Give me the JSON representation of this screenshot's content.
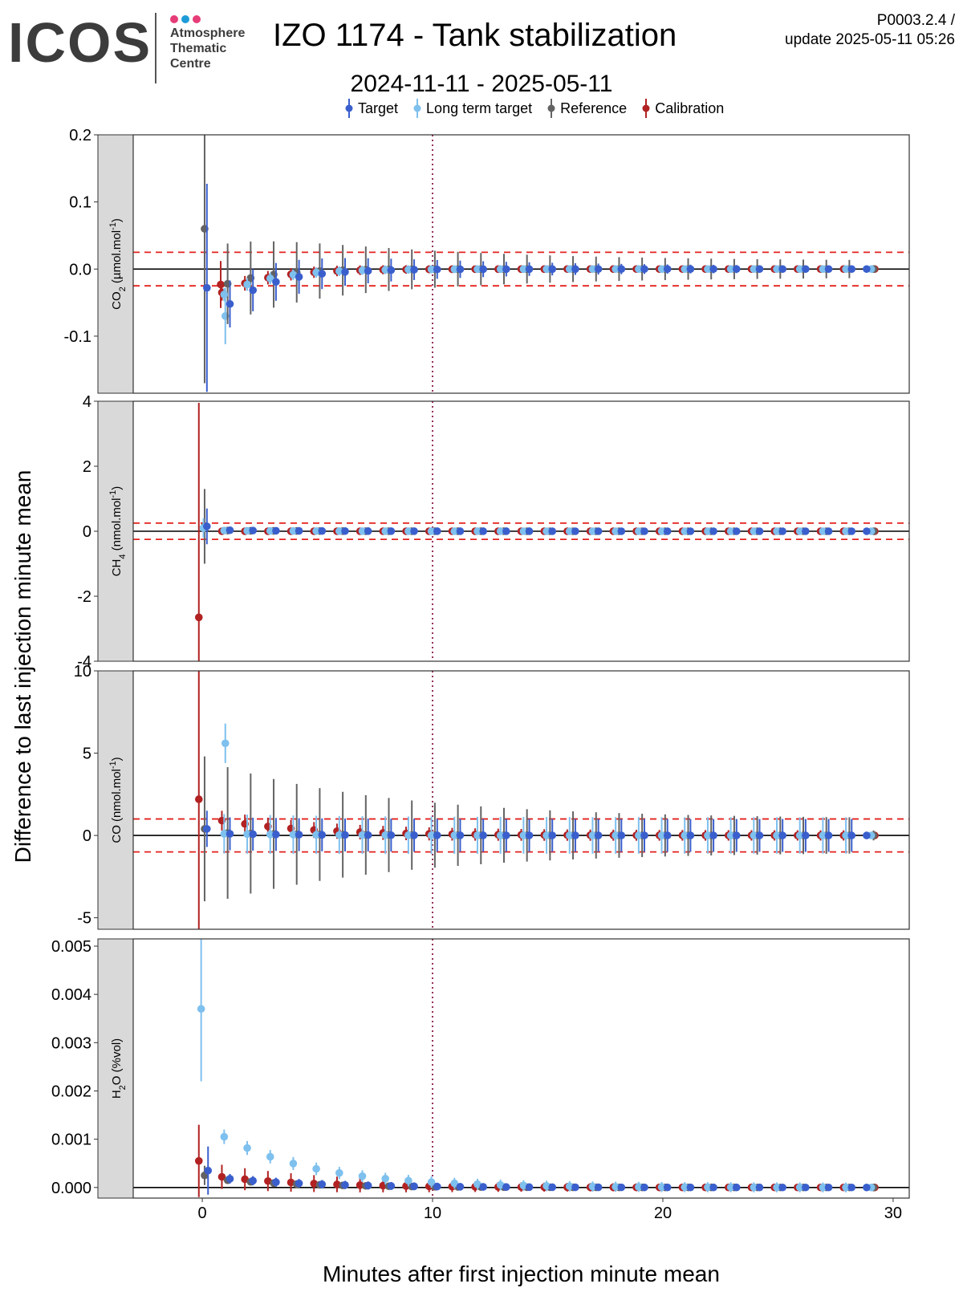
{
  "header": {
    "logo_text": "ICOS",
    "logo_subtitle": [
      "Atmosphere",
      "Thematic",
      "Centre"
    ],
    "logo_dot_colors": [
      "#e63c78",
      "#1e9bd7",
      "#e63c78"
    ],
    "title": "IZO 1174 - Tank stabilization",
    "version_line1": "P0003.2.4 /",
    "version_line2": "update  2025-05-11 05:26",
    "subtitle": "2024-11-11 - 2025-05-11"
  },
  "chart_data": {
    "type": "scatter",
    "subtype": "point-with-errorbars, faceted",
    "xlabel": "Minutes after first injection minute mean",
    "ylabel": "Difference to last injection minute mean",
    "xlim": [
      -3,
      30.7
    ],
    "xticks": [
      0,
      10,
      20,
      30
    ],
    "vline_x": 10,
    "legend": {
      "placement": "top",
      "entries": [
        {
          "name": "Target",
          "color": "#3a5fcd"
        },
        {
          "name": "Long term target",
          "color": "#7ec0ee"
        },
        {
          "name": "Reference",
          "color": "#636363"
        },
        {
          "name": "Calibration",
          "color": "#b22222"
        }
      ]
    },
    "panels": [
      {
        "label_main": "CO",
        "label_sub": "2",
        "label_rest": " (µmol.mol",
        "label_sup": "-1",
        "label_end": ")",
        "ylim": [
          -0.185,
          0.2
        ],
        "yticks": [
          -0.1,
          0.0,
          0.1,
          0.2
        ],
        "ytick_labels": [
          "-0.1",
          "0.0",
          "0.1",
          "0.2"
        ],
        "threshold": 0.025,
        "first": {
          "Target": {
            "x": 0.2,
            "y": -0.028,
            "err": 0.155
          },
          "Long term target": {
            "x": 1.0,
            "y": -0.07,
            "err": 0.042
          },
          "Reference": {
            "x": 0.1,
            "y": 0.06,
            "err": 0.23
          },
          "Calibration": {
            "x": 0.8,
            "y": -0.023,
            "err": 0.035
          }
        },
        "series_start": [
          -0.052,
          -0.038,
          -0.022,
          -0.035
        ],
        "decay": 2.0,
        "err_start": [
          0.035,
          0.01,
          0.06,
          0.012
        ],
        "err_end": [
          0.004,
          0.004,
          0.012,
          0.003
        ],
        "tail_err": [
          0.004,
          0.004,
          0.005,
          0.003
        ]
      },
      {
        "label_main": "CH",
        "label_sub": "4",
        "label_rest": " (nmol.mol",
        "label_sup": "-1",
        "label_end": ")",
        "ylim": [
          -4,
          4
        ],
        "yticks": [
          -4,
          -2,
          0,
          2,
          4
        ],
        "ytick_labels": [
          "-4",
          "-2",
          "0",
          "2",
          "4"
        ],
        "threshold": 0.25,
        "first": {
          "Target": {
            "x": 0.2,
            "y": 0.15,
            "err": 0.55
          },
          "Long term target": {
            "x": 0.05,
            "y": 0.1,
            "err": 0.3
          },
          "Reference": {
            "x": 0.1,
            "y": 0.15,
            "err": 1.15
          },
          "Calibration": {
            "x": -0.15,
            "y": -2.65,
            "err": 6.6
          }
        },
        "series_start": [
          0.03,
          0.02,
          0.02,
          0.0
        ],
        "decay": 3.0,
        "err_start": [
          0.06,
          0.06,
          0.08,
          0.05
        ],
        "err_end": [
          0.05,
          0.05,
          0.05,
          0.05
        ],
        "tail_err": [
          0.05,
          0.05,
          0.05,
          0.05
        ]
      },
      {
        "label_main": "CO",
        "label_sub": "",
        "label_rest": " (nmol.mol",
        "label_sup": "-1",
        "label_end": ")",
        "ylim": [
          -5.7,
          10
        ],
        "yticks": [
          -5,
          0,
          5,
          10
        ],
        "ytick_labels": [
          "-5",
          "0",
          "5",
          "10"
        ],
        "threshold": 1.0,
        "first": {
          "Target": {
            "x": 0.2,
            "y": 0.4,
            "err": 1.1
          },
          "Long term target": {
            "x": 1.0,
            "y": 5.6,
            "err": 1.2
          },
          "Reference": {
            "x": 0.1,
            "y": 0.4,
            "err": 4.4
          },
          "Calibration": {
            "x": -0.15,
            "y": 2.2,
            "err": 9.0
          }
        },
        "series_start": [
          0.1,
          0.1,
          0.15,
          0.9
        ],
        "decay": 4.0,
        "err_start": [
          1.0,
          1.2,
          4.0,
          0.6
        ],
        "err_end": [
          1.0,
          1.1,
          1.0,
          0.3
        ],
        "tail_err": [
          0.2,
          0.2,
          0.3,
          0.2
        ]
      },
      {
        "label_main": "H",
        "label_sub": "2",
        "label_rest": "O (%vol)",
        "label_sup": "",
        "label_end": "",
        "ylim": [
          -0.00022,
          0.00515
        ],
        "yticks": [
          0.0,
          0.001,
          0.002,
          0.003,
          0.004,
          0.005
        ],
        "ytick_labels": [
          "0.000",
          "0.001",
          "0.002",
          "0.003",
          "0.004",
          "0.005"
        ],
        "threshold": null,
        "first": {
          "Target": {
            "x": 0.25,
            "y": 0.00035,
            "err": 0.0005
          },
          "Long term target": {
            "x": -0.05,
            "y": 0.0037,
            "err": 0.0015
          },
          "Reference": {
            "x": 0.1,
            "y": 0.00025,
            "err": 0.0002
          },
          "Calibration": {
            "x": -0.15,
            "y": 0.00055,
            "err": 0.00075
          }
        },
        "series_start": [
          0.00018,
          0.00105,
          0.00015,
          0.00022
        ],
        "decay": 4.0,
        "err_start": [
          0.0001,
          0.00015,
          8e-05,
          0.00025
        ],
        "err_end": [
          7e-05,
          0.0001,
          5e-05,
          6e-05
        ],
        "tail_err": [
          2e-05,
          2e-05,
          2e-05,
          2e-05
        ]
      }
    ],
    "x_offsets": {
      "Target": 0.2,
      "Long term target": -0.05,
      "Reference": 0.1,
      "Calibration": -0.15
    },
    "minutes_from": 1,
    "minutes_to": 28,
    "tail_x": [
      28.85,
      29.05,
      29.15,
      29.2
    ]
  }
}
